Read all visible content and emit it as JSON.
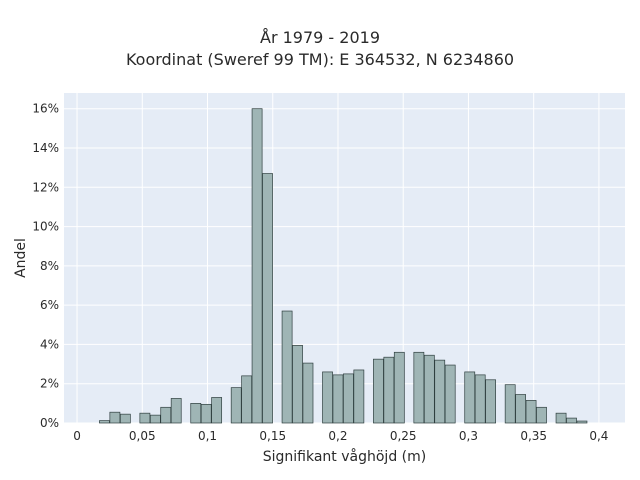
{
  "chart_data": {
    "type": "bar",
    "title": "År 1979 - 2019",
    "subtitle": "Koordinat (Sweref 99 TM): E 364532, N 6234860",
    "xlabel": "Signifikant våghöjd (m)",
    "ylabel": "Andel",
    "xlim": [
      -0.01,
      0.42
    ],
    "ylim": [
      0,
      16.8
    ],
    "x_ticks": [
      0,
      0.05,
      0.1,
      0.15,
      0.2,
      0.25,
      0.3,
      0.35,
      0.4
    ],
    "x_tick_labels": [
      "0",
      "0,05",
      "0,1",
      "0,15",
      "0,2",
      "0,25",
      "0,3",
      "0,35",
      "0,4"
    ],
    "y_ticks": [
      0,
      2,
      4,
      6,
      8,
      10,
      12,
      14,
      16
    ],
    "y_tick_labels": [
      "0%",
      "2%",
      "4%",
      "6%",
      "8%",
      "10%",
      "12%",
      "14%",
      "16%"
    ],
    "bin_width": 0.0077,
    "bins": [
      {
        "x": 0.021,
        "y": 0.12
      },
      {
        "x": 0.029,
        "y": 0.55
      },
      {
        "x": 0.037,
        "y": 0.45
      },
      {
        "x": 0.052,
        "y": 0.5
      },
      {
        "x": 0.06,
        "y": 0.4
      },
      {
        "x": 0.068,
        "y": 0.8
      },
      {
        "x": 0.076,
        "y": 1.25
      },
      {
        "x": 0.091,
        "y": 1.0
      },
      {
        "x": 0.099,
        "y": 0.95
      },
      {
        "x": 0.107,
        "y": 1.3
      },
      {
        "x": 0.122,
        "y": 1.8
      },
      {
        "x": 0.13,
        "y": 2.4
      },
      {
        "x": 0.138,
        "y": 16.0
      },
      {
        "x": 0.146,
        "y": 12.7
      },
      {
        "x": 0.161,
        "y": 5.7
      },
      {
        "x": 0.169,
        "y": 3.95
      },
      {
        "x": 0.177,
        "y": 3.05
      },
      {
        "x": 0.192,
        "y": 2.6
      },
      {
        "x": 0.2,
        "y": 2.45
      },
      {
        "x": 0.208,
        "y": 2.5
      },
      {
        "x": 0.216,
        "y": 2.7
      },
      {
        "x": 0.231,
        "y": 3.25
      },
      {
        "x": 0.239,
        "y": 3.35
      },
      {
        "x": 0.247,
        "y": 3.6
      },
      {
        "x": 0.262,
        "y": 3.6
      },
      {
        "x": 0.27,
        "y": 3.45
      },
      {
        "x": 0.278,
        "y": 3.2
      },
      {
        "x": 0.286,
        "y": 2.95
      },
      {
        "x": 0.301,
        "y": 2.6
      },
      {
        "x": 0.309,
        "y": 2.45
      },
      {
        "x": 0.317,
        "y": 2.2
      },
      {
        "x": 0.332,
        "y": 1.95
      },
      {
        "x": 0.34,
        "y": 1.45
      },
      {
        "x": 0.348,
        "y": 1.15
      },
      {
        "x": 0.356,
        "y": 0.8
      },
      {
        "x": 0.371,
        "y": 0.5
      },
      {
        "x": 0.379,
        "y": 0.25
      },
      {
        "x": 0.387,
        "y": 0.1
      }
    ],
    "grid": true,
    "colors": {
      "bar_fill": "#9fb5b5",
      "bar_stroke": "#2f3f3f",
      "plot_bg": "#e5ecf6",
      "grid": "#ffffff"
    }
  }
}
